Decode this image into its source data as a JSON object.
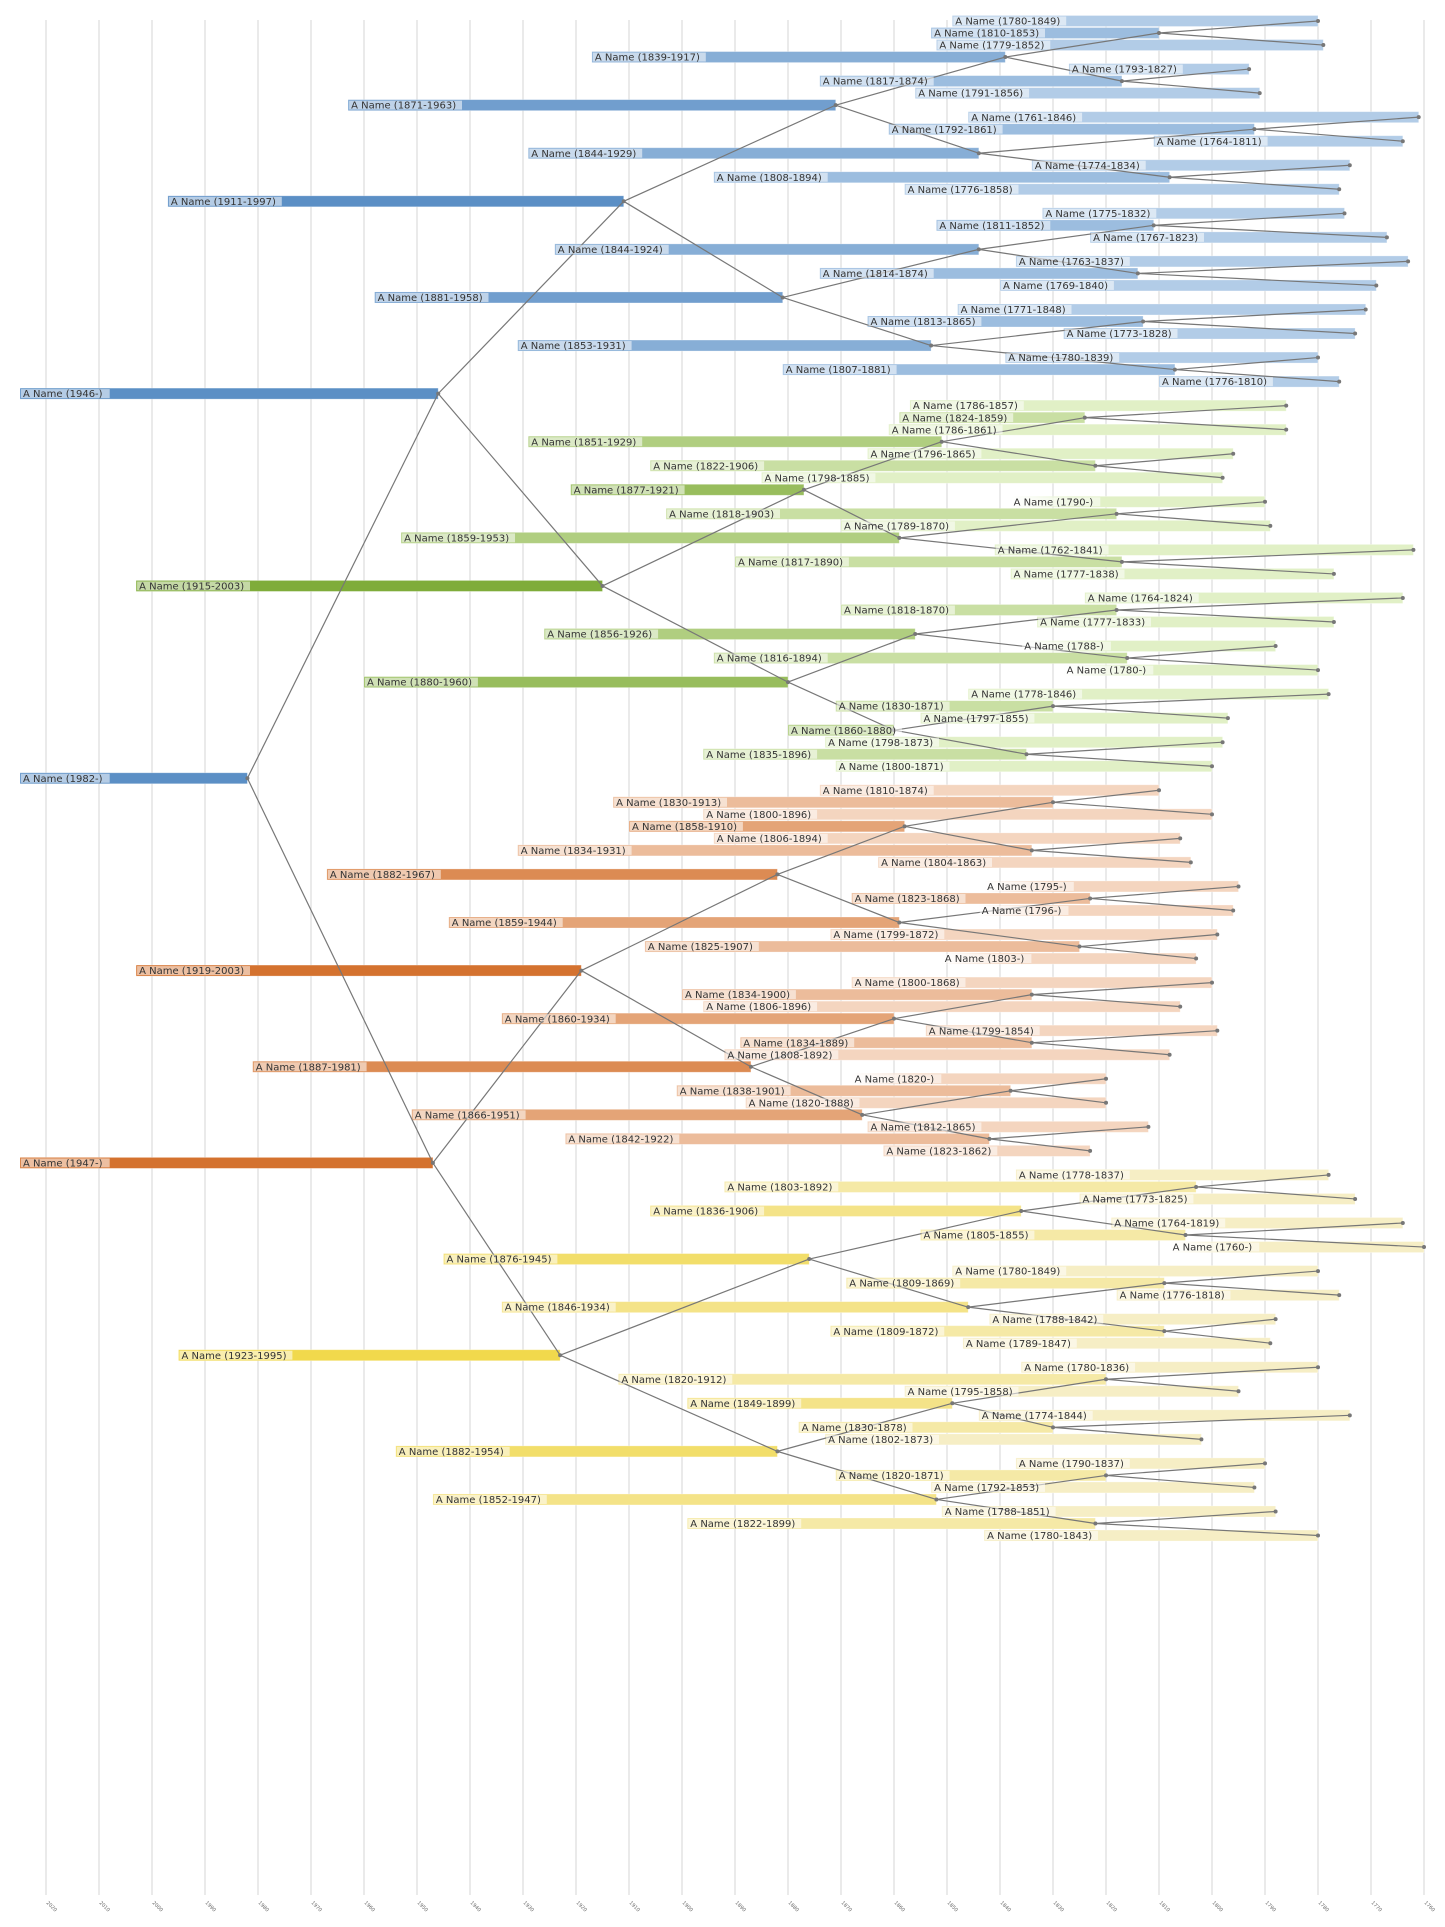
{
  "chart_data": {
    "type": "timeline-tree",
    "title": "",
    "xlabel": "",
    "ylabel": "",
    "x_axis": {
      "reversed": true,
      "range": [
        2020,
        1760
      ],
      "ticks": [
        2020,
        2010,
        2000,
        1990,
        1980,
        1970,
        1960,
        1950,
        1940,
        1930,
        1920,
        1910,
        1900,
        1890,
        1880,
        1870,
        1860,
        1850,
        1840,
        1830,
        1820,
        1810,
        1800,
        1790,
        1780,
        1770,
        1760
      ],
      "grid": true
    },
    "groups": [
      {
        "name": "paternal-paternal",
        "color_dark": "#5b8fc5",
        "color_light": "#bcd3eb",
        "rows": [
          0,
          31
        ]
      },
      {
        "name": "paternal-maternal",
        "color_dark": "#7fac3a",
        "color_light": "#ecf8d6",
        "rows": [
          32,
          62
        ]
      },
      {
        "name": "maternal-paternal",
        "color_dark": "#d4722f",
        "color_light": "#f7e0cf",
        "rows": [
          64,
          95
        ]
      },
      {
        "name": "maternal-maternal",
        "color_dark": "#f1d94c",
        "color_light": "#f7f0d2",
        "rows": [
          96,
          126
        ]
      }
    ],
    "root_color": "#5b8fc5",
    "people": [
      {
        "k": 0,
        "label": "A Name (1780-1849)",
        "born": 1780,
        "died": 1849
      },
      {
        "k": 1,
        "label": "A Name (1810-1853)",
        "born": 1810,
        "died": 1853
      },
      {
        "k": 2,
        "label": "A Name (1779-1852)",
        "born": 1779,
        "died": 1852
      },
      {
        "k": 3,
        "label": "A Name (1839-1917)",
        "born": 1839,
        "died": 1917
      },
      {
        "k": 4,
        "label": "A Name (1793-1827)",
        "born": 1793,
        "died": 1827
      },
      {
        "k": 5,
        "label": "A Name (1817-1874)",
        "born": 1817,
        "died": 1874
      },
      {
        "k": 6,
        "label": "A Name (1791-1856)",
        "born": 1791,
        "died": 1856
      },
      {
        "k": 7,
        "label": "A Name (1871-1963)",
        "born": 1871,
        "died": 1963
      },
      {
        "k": 8,
        "label": "A Name (1761-1846)",
        "born": 1761,
        "died": 1846
      },
      {
        "k": 9,
        "label": "A Name (1792-1861)",
        "born": 1792,
        "died": 1861
      },
      {
        "k": 10,
        "label": "A Name (1764-1811)",
        "born": 1764,
        "died": 1811
      },
      {
        "k": 11,
        "label": "A Name (1844-1929)",
        "born": 1844,
        "died": 1929
      },
      {
        "k": 12,
        "label": "A Name (1774-1834)",
        "born": 1774,
        "died": 1834
      },
      {
        "k": 13,
        "label": "A Name (1808-1894)",
        "born": 1808,
        "died": 1894
      },
      {
        "k": 14,
        "label": "A Name (1776-1858)",
        "born": 1776,
        "died": 1858
      },
      {
        "k": 15,
        "label": "A Name (1911-1997)",
        "born": 1911,
        "died": 1997
      },
      {
        "k": 16,
        "label": "A Name (1775-1832)",
        "born": 1775,
        "died": 1832
      },
      {
        "k": 17,
        "label": "A Name (1811-1852)",
        "born": 1811,
        "died": 1852
      },
      {
        "k": 18,
        "label": "A Name (1767-1823)",
        "born": 1767,
        "died": 1823
      },
      {
        "k": 19,
        "label": "A Name (1844-1924)",
        "born": 1844,
        "died": 1924
      },
      {
        "k": 20,
        "label": "A Name (1763-1837)",
        "born": 1763,
        "died": 1837
      },
      {
        "k": 21,
        "label": "A Name (1814-1874)",
        "born": 1814,
        "died": 1874
      },
      {
        "k": 22,
        "label": "A Name (1769-1840)",
        "born": 1769,
        "died": 1840
      },
      {
        "k": 23,
        "label": "A Name (1881-1958)",
        "born": 1881,
        "died": 1958
      },
      {
        "k": 24,
        "label": "A Name (1771-1848)",
        "born": 1771,
        "died": 1848
      },
      {
        "k": 25,
        "label": "A Name (1813-1865)",
        "born": 1813,
        "died": 1865
      },
      {
        "k": 26,
        "label": "A Name (1773-1828)",
        "born": 1773,
        "died": 1828
      },
      {
        "k": 27,
        "label": "A Name (1853-1931)",
        "born": 1853,
        "died": 1931
      },
      {
        "k": 28,
        "label": "A Name (1780-1839)",
        "born": 1780,
        "died": 1839
      },
      {
        "k": 29,
        "label": "A Name (1807-1881)",
        "born": 1807,
        "died": 1881
      },
      {
        "k": 30,
        "label": "A Name (1776-1810)",
        "born": 1776,
        "died": 1810
      },
      {
        "k": 31,
        "label": "A Name (1946-)",
        "born": 1946,
        "died": null
      },
      {
        "k": 32,
        "label": "A Name (1786-1857)",
        "born": 1786,
        "died": 1857
      },
      {
        "k": 33,
        "label": "A Name (1824-1859)",
        "born": 1824,
        "died": 1859
      },
      {
        "k": 34,
        "label": "A Name (1786-1861)",
        "born": 1786,
        "died": 1861
      },
      {
        "k": 35,
        "label": "A Name (1851-1929)",
        "born": 1851,
        "died": 1929
      },
      {
        "k": 36,
        "label": "A Name (1796-1865)",
        "born": 1796,
        "died": 1865
      },
      {
        "k": 37,
        "label": "A Name (1822-1906)",
        "born": 1822,
        "died": 1906
      },
      {
        "k": 38,
        "label": "A Name (1798-1885)",
        "born": 1798,
        "died": 1885
      },
      {
        "k": 39,
        "label": "A Name (1877-1921)",
        "born": 1877,
        "died": 1921
      },
      {
        "k": 40,
        "label": "A Name (1790-)",
        "born": 1790,
        "died": null
      },
      {
        "k": 41,
        "label": "A Name (1818-1903)",
        "born": 1818,
        "died": 1903
      },
      {
        "k": 42,
        "label": "A Name (1789-1870)",
        "born": 1789,
        "died": 1870
      },
      {
        "k": 43,
        "label": "A Name (1859-1953)",
        "born": 1859,
        "died": 1953
      },
      {
        "k": 44,
        "label": "A Name (1762-1841)",
        "born": 1762,
        "died": 1841
      },
      {
        "k": 45,
        "label": "A Name (1817-1890)",
        "born": 1817,
        "died": 1890
      },
      {
        "k": 46,
        "label": "A Name (1777-1838)",
        "born": 1777,
        "died": 1838
      },
      {
        "k": 47,
        "label": "A Name (1915-2003)",
        "born": 1915,
        "died": 2003
      },
      {
        "k": 48,
        "label": "A Name (1764-1824)",
        "born": 1764,
        "died": 1824
      },
      {
        "k": 49,
        "label": "A Name (1818-1870)",
        "born": 1818,
        "died": 1870
      },
      {
        "k": 50,
        "label": "A Name (1777-1833)",
        "born": 1777,
        "died": 1833
      },
      {
        "k": 51,
        "label": "A Name (1856-1926)",
        "born": 1856,
        "died": 1926
      },
      {
        "k": 52,
        "label": "A Name (1788-)",
        "born": 1788,
        "died": null
      },
      {
        "k": 53,
        "label": "A Name (1816-1894)",
        "born": 1816,
        "died": 1894
      },
      {
        "k": 54,
        "label": "A Name (1780-)",
        "born": 1780,
        "died": null
      },
      {
        "k": 55,
        "label": "A Name (1880-1960)",
        "born": 1880,
        "died": 1960
      },
      {
        "k": 56,
        "label": "A Name (1778-1846)",
        "born": 1778,
        "died": 1846
      },
      {
        "k": 57,
        "label": "A Name (1830-1871)",
        "born": 1830,
        "died": 1871
      },
      {
        "k": 58,
        "label": "A Name (1797-1855)",
        "born": 1797,
        "died": 1855
      },
      {
        "k": 59,
        "label": "A Name (1860-1880)",
        "born": 1860,
        "died": 1880
      },
      {
        "k": 60,
        "label": "A Name (1798-1873)",
        "born": 1798,
        "died": 1873
      },
      {
        "k": 61,
        "label": "A Name (1835-1896)",
        "born": 1835,
        "died": 1896
      },
      {
        "k": 62,
        "label": "A Name (1800-1871)",
        "born": 1800,
        "died": 1871
      },
      {
        "k": 63,
        "label": "A Name (1982-)",
        "born": 1982,
        "died": null
      },
      {
        "k": 64,
        "label": "A Name (1810-1874)",
        "born": 1810,
        "died": 1874
      },
      {
        "k": 65,
        "label": "A Name (1830-1913)",
        "born": 1830,
        "died": 1913
      },
      {
        "k": 66,
        "label": "A Name (1800-1896)",
        "born": 1800,
        "died": 1896
      },
      {
        "k": 67,
        "label": "A Name (1858-1910)",
        "born": 1858,
        "died": 1910
      },
      {
        "k": 68,
        "label": "A Name (1806-1894)",
        "born": 1806,
        "died": 1894
      },
      {
        "k": 69,
        "label": "A Name (1834-1931)",
        "born": 1834,
        "died": 1931
      },
      {
        "k": 70,
        "label": "A Name (1804-1863)",
        "born": 1804,
        "died": 1863
      },
      {
        "k": 71,
        "label": "A Name (1882-1967)",
        "born": 1882,
        "died": 1967
      },
      {
        "k": 72,
        "label": "A Name (1795-)",
        "born": 1795,
        "died": null
      },
      {
        "k": 73,
        "label": "A Name (1823-1868)",
        "born": 1823,
        "died": 1868
      },
      {
        "k": 74,
        "label": "A Name (1796-)",
        "born": 1796,
        "died": null
      },
      {
        "k": 75,
        "label": "A Name (1859-1944)",
        "born": 1859,
        "died": 1944
      },
      {
        "k": 76,
        "label": "A Name (1799-1872)",
        "born": 1799,
        "died": 1872
      },
      {
        "k": 77,
        "label": "A Name (1825-1907)",
        "born": 1825,
        "died": 1907
      },
      {
        "k": 78,
        "label": "A Name (1803-)",
        "born": 1803,
        "died": null
      },
      {
        "k": 79,
        "label": "A Name (1919-2003)",
        "born": 1919,
        "died": 2003
      },
      {
        "k": 80,
        "label": "A Name (1800-1868)",
        "born": 1800,
        "died": 1868
      },
      {
        "k": 81,
        "label": "A Name (1834-1900)",
        "born": 1834,
        "died": 1900
      },
      {
        "k": 82,
        "label": "A Name (1806-1896)",
        "born": 1806,
        "died": 1896
      },
      {
        "k": 83,
        "label": "A Name (1860-1934)",
        "born": 1860,
        "died": 1934
      },
      {
        "k": 84,
        "label": "A Name (1799-1854)",
        "born": 1799,
        "died": 1854
      },
      {
        "k": 85,
        "label": "A Name (1834-1889)",
        "born": 1834,
        "died": 1889
      },
      {
        "k": 86,
        "label": "A Name (1808-1892)",
        "born": 1808,
        "died": 1892
      },
      {
        "k": 87,
        "label": "A Name (1887-1981)",
        "born": 1887,
        "died": 1981
      },
      {
        "k": 88,
        "label": "A Name (1820-)",
        "born": 1820,
        "died": null
      },
      {
        "k": 89,
        "label": "A Name (1838-1901)",
        "born": 1838,
        "died": 1901
      },
      {
        "k": 90,
        "label": "A Name (1820-1888)",
        "born": 1820,
        "died": 1888
      },
      {
        "k": 91,
        "label": "A Name (1866-1951)",
        "born": 1866,
        "died": 1951
      },
      {
        "k": 92,
        "label": "A Name (1812-1865)",
        "born": 1812,
        "died": 1865
      },
      {
        "k": 93,
        "label": "A Name (1842-1922)",
        "born": 1842,
        "died": 1922
      },
      {
        "k": 94,
        "label": "A Name (1823-1862)",
        "born": 1823,
        "died": 1862
      },
      {
        "k": 95,
        "label": "A Name (1947-)",
        "born": 1947,
        "died": null
      },
      {
        "k": 96,
        "label": "A Name (1778-1837)",
        "born": 1778,
        "died": 1837
      },
      {
        "k": 97,
        "label": "A Name (1803-1892)",
        "born": 1803,
        "died": 1892
      },
      {
        "k": 98,
        "label": "A Name (1773-1825)",
        "born": 1773,
        "died": 1825
      },
      {
        "k": 99,
        "label": "A Name (1836-1906)",
        "born": 1836,
        "died": 1906
      },
      {
        "k": 100,
        "label": "A Name (1764-1819)",
        "born": 1764,
        "died": 1819
      },
      {
        "k": 101,
        "label": "A Name (1805-1855)",
        "born": 1805,
        "died": 1855
      },
      {
        "k": 102,
        "label": "A Name (1760-)",
        "born": 1760,
        "died": null
      },
      {
        "k": 103,
        "label": "A Name (1876-1945)",
        "born": 1876,
        "died": 1945
      },
      {
        "k": 104,
        "label": "A Name (1780-1849)",
        "born": 1780,
        "died": 1849
      },
      {
        "k": 105,
        "label": "A Name (1809-1869)",
        "born": 1809,
        "died": 1869
      },
      {
        "k": 106,
        "label": "A Name (1776-1818)",
        "born": 1776,
        "died": 1818
      },
      {
        "k": 107,
        "label": "A Name (1846-1934)",
        "born": 1846,
        "died": 1934
      },
      {
        "k": 108,
        "label": "A Name (1788-1842)",
        "born": 1788,
        "died": 1842
      },
      {
        "k": 109,
        "label": "A Name (1809-1872)",
        "born": 1809,
        "died": 1872
      },
      {
        "k": 110,
        "label": "A Name (1789-1847)",
        "born": 1789,
        "died": 1847
      },
      {
        "k": 111,
        "label": "A Name (1923-1995)",
        "born": 1923,
        "died": 1995
      },
      {
        "k": 112,
        "label": "A Name (1780-1836)",
        "born": 1780,
        "died": 1836
      },
      {
        "k": 113,
        "label": "A Name (1820-1912)",
        "born": 1820,
        "died": 1912
      },
      {
        "k": 114,
        "label": "A Name (1795-1858)",
        "born": 1795,
        "died": 1858
      },
      {
        "k": 115,
        "label": "A Name (1849-1899)",
        "born": 1849,
        "died": 1899
      },
      {
        "k": 116,
        "label": "A Name (1774-1844)",
        "born": 1774,
        "died": 1844
      },
      {
        "k": 117,
        "label": "A Name (1830-1878)",
        "born": 1830,
        "died": 1878
      },
      {
        "k": 118,
        "label": "A Name (1802-1873)",
        "born": 1802,
        "died": 1873
      },
      {
        "k": 119,
        "label": "A Name (1882-1954)",
        "born": 1882,
        "died": 1954
      },
      {
        "k": 120,
        "label": "A Name (1790-1837)",
        "born": 1790,
        "died": 1837
      },
      {
        "k": 121,
        "label": "A Name (1820-1871)",
        "born": 1820,
        "died": 1871
      },
      {
        "k": 122,
        "label": "A Name (1792-1853)",
        "born": 1792,
        "died": 1853
      },
      {
        "k": 123,
        "label": "A Name (1852-1947)",
        "born": 1852,
        "died": 1947
      },
      {
        "k": 124,
        "label": "A Name (1788-1851)",
        "born": 1788,
        "died": 1851
      },
      {
        "k": 125,
        "label": "A Name (1822-1899)",
        "born": 1822,
        "died": 1899
      },
      {
        "k": 126,
        "label": "A Name (1780-1843)",
        "born": 1780,
        "died": 1843
      }
    ]
  }
}
